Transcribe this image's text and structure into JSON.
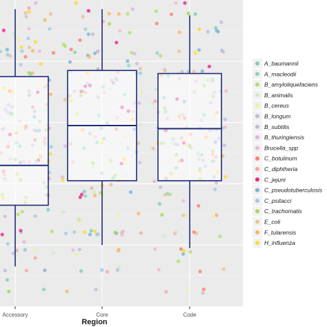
{
  "chart_data": {
    "type": "box",
    "xlabel": "Region",
    "categories": [
      "Accessory",
      "Core",
      "Code"
    ],
    "boxes": [
      {
        "category": "Accessory",
        "whisker_low": 0.13,
        "q1": 0.33,
        "median": 0.46,
        "q3": 0.75,
        "whisker_high": 0.97
      },
      {
        "category": "Core",
        "whisker_low": 0.2,
        "q1": 0.41,
        "median": 0.59,
        "q3": 0.77,
        "whisker_high": 0.97
      },
      {
        "category": "Code",
        "whisker_low": 0.19,
        "q1": 0.41,
        "median": 0.58,
        "q3": 0.76,
        "whisker_high": 0.95
      }
    ],
    "series": [
      {
        "name": "A_baumannii",
        "color": "#7fcdbb"
      },
      {
        "name": "A_macleodii",
        "color": "#8dd3c7"
      },
      {
        "name": "B_amyloliquefaciens",
        "color": "#b3de69"
      },
      {
        "name": "B_animalis",
        "color": "#ccebc5"
      },
      {
        "name": "B_cereus",
        "color": "#e6f598"
      },
      {
        "name": "B_longum",
        "color": "#bebada"
      },
      {
        "name": "B_subtilis",
        "color": "#bcbddc"
      },
      {
        "name": "B_thuringiensis",
        "color": "#d4b9da"
      },
      {
        "name": "Brucella_spp",
        "color": "#f1b6da"
      },
      {
        "name": "C_botulinum",
        "color": "#fb8072"
      },
      {
        "name": "C_diphtheria",
        "color": "#f4a6a6"
      },
      {
        "name": "C_jejuni",
        "color": "#e7298a"
      },
      {
        "name": "C_pseudotuberculosis",
        "color": "#80b1d3"
      },
      {
        "name": "C_psitacci",
        "color": "#9ecae1"
      },
      {
        "name": "C_trachomatis",
        "color": "#a6d854"
      },
      {
        "name": "E_coli",
        "color": "#e5c494"
      },
      {
        "name": "F_tularensis",
        "color": "#fdb462"
      },
      {
        "name": "H_influenza",
        "color": "#ffd92f"
      }
    ],
    "grid": true,
    "legend": "right"
  }
}
